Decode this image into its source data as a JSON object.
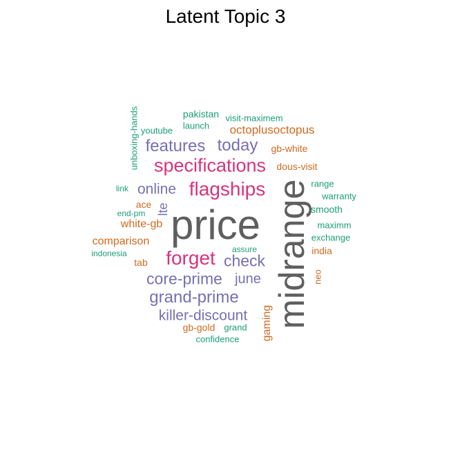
{
  "title": "Latent Topic 3",
  "colors": {
    "gray": "#5f5f5f",
    "pink": "#d6347e",
    "purple": "#7570b3",
    "orange": "#d1691f",
    "teal": "#1b9e77"
  },
  "words": [
    "price",
    "midrange",
    "flagships",
    "specifications",
    "forget",
    "features",
    "today",
    "check",
    "online",
    "core-prime",
    "grand-prime",
    "killer-discount",
    "june",
    "lte",
    "octoplusoctopus",
    "comparison",
    "white-gb",
    "gaming",
    "gb-white",
    "dous-visit",
    "ace",
    "tab",
    "gb-gold",
    "india",
    "neo",
    "pakistan",
    "launch",
    "visit-maximem",
    "youtube",
    "unboxing-hands",
    "link",
    "end-pm",
    "indonesia",
    "range",
    "warranty",
    "smooth",
    "maximm",
    "exchange",
    "assure",
    "grand",
    "confidence"
  ]
}
